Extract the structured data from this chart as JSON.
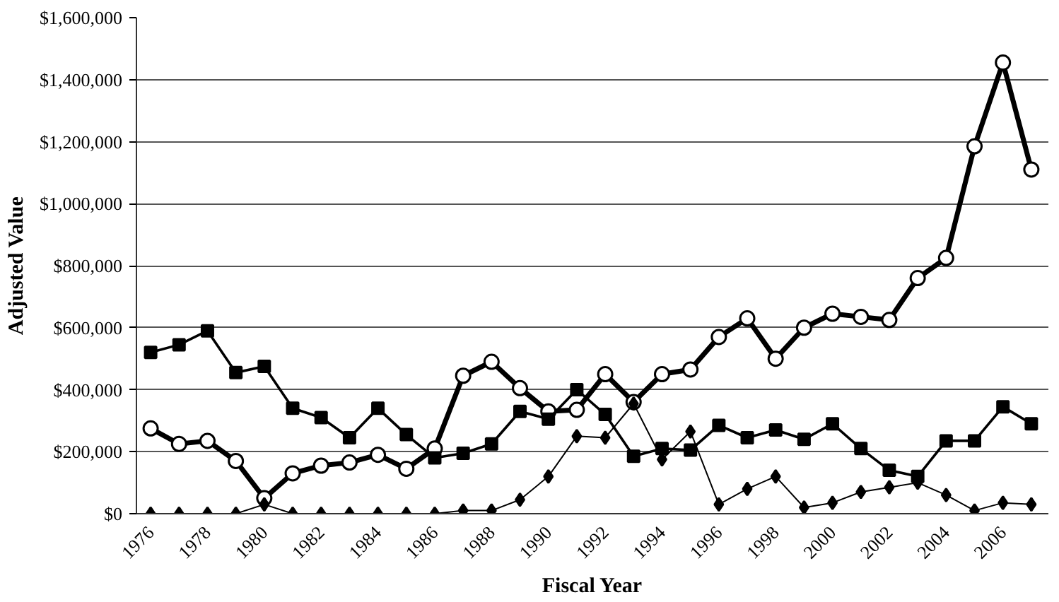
{
  "chart_data": {
    "type": "line",
    "xlabel": "Fiscal Year",
    "ylabel": "Adjusted Value",
    "x": [
      1976,
      1977,
      1978,
      1979,
      1980,
      1981,
      1982,
      1983,
      1984,
      1985,
      1986,
      1987,
      1988,
      1989,
      1990,
      1991,
      1992,
      1993,
      1994,
      1995,
      1996,
      1997,
      1998,
      1999,
      2000,
      2001,
      2002,
      2003,
      2004,
      2005,
      2006,
      2007
    ],
    "series": [
      {
        "color": "#000000",
        "marker": "circle",
        "values": [
          275000,
          225000,
          235000,
          170000,
          50000,
          130000,
          155000,
          165000,
          190000,
          145000,
          210000,
          445000,
          490000,
          405000,
          330000,
          335000,
          450000,
          360000,
          450000,
          465000,
          570000,
          630000,
          500000,
          600000,
          645000,
          635000,
          625000,
          760000,
          825000,
          1185000,
          1455000,
          1110000
        ]
      },
      {
        "color": "#000000",
        "marker": "square",
        "values": [
          520000,
          545000,
          590000,
          455000,
          475000,
          340000,
          310000,
          245000,
          340000,
          255000,
          180000,
          195000,
          225000,
          330000,
          305000,
          400000,
          320000,
          185000,
          210000,
          205000,
          285000,
          245000,
          270000,
          240000,
          290000,
          210000,
          140000,
          120000,
          235000,
          235000,
          345000,
          290000
        ]
      },
      {
        "color": "#000000",
        "marker": "diamond",
        "values": [
          0,
          0,
          0,
          0,
          30000,
          0,
          0,
          0,
          0,
          0,
          0,
          10000,
          10000,
          45000,
          120000,
          250000,
          245000,
          355000,
          175000,
          265000,
          30000,
          80000,
          120000,
          20000,
          35000,
          70000,
          85000,
          100000,
          60000,
          10000,
          35000,
          30000
        ]
      }
    ],
    "xlim": [
      1975.5,
      2007.6
    ],
    "xticks": [
      1976,
      1978,
      1980,
      1982,
      1984,
      1986,
      1988,
      1990,
      1992,
      1994,
      1996,
      1998,
      2000,
      2002,
      2004,
      2006
    ],
    "ylim": [
      0,
      1600000
    ],
    "yticks": [
      {
        "value": 0,
        "label": "$0"
      },
      {
        "value": 200000,
        "label": "$200,000"
      },
      {
        "value": 400000,
        "label": "$400,000"
      },
      {
        "value": 600000,
        "label": "$600,000"
      },
      {
        "value": 800000,
        "label": "$800,000"
      },
      {
        "value": 1000000,
        "label": "$1,000,000"
      },
      {
        "value": 1200000,
        "label": "$1,200,000"
      },
      {
        "value": 1400000,
        "label": "$1,400,000"
      },
      {
        "value": 1600000,
        "label": "$1,600,000"
      }
    ],
    "grid": "y",
    "line_style": "solid"
  }
}
